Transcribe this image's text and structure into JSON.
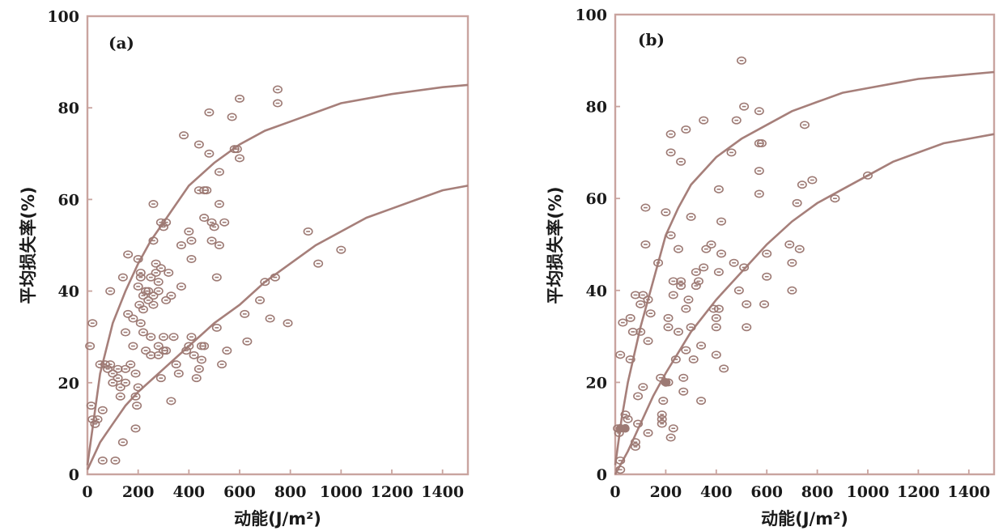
{
  "chart_data": [
    {
      "type": "scatter",
      "panel_label": "(a)",
      "xlabel": "动能(J/m²)",
      "ylabel": "平均损失率(%)",
      "xlim": [
        0,
        1500
      ],
      "ylim": [
        0,
        100
      ],
      "xticks": [
        "0",
        "200",
        "400",
        "600",
        "800",
        "1000",
        "1200",
        "1400"
      ],
      "yticks": [
        "0",
        "20",
        "40",
        "60",
        "80",
        "100"
      ],
      "curves": [
        {
          "name": "upper",
          "points": [
            [
              0,
              2
            ],
            [
              50,
              22
            ],
            [
              100,
              33
            ],
            [
              150,
              40
            ],
            [
              200,
              46
            ],
            [
              250,
              51
            ],
            [
              300,
              55
            ],
            [
              400,
              63
            ],
            [
              500,
              68
            ],
            [
              600,
              72
            ],
            [
              700,
              75
            ],
            [
              800,
              77
            ],
            [
              900,
              79
            ],
            [
              1000,
              81
            ],
            [
              1200,
              83
            ],
            [
              1400,
              84.5
            ],
            [
              1500,
              85
            ]
          ]
        },
        {
          "name": "lower",
          "points": [
            [
              0,
              1
            ],
            [
              50,
              7
            ],
            [
              100,
              11
            ],
            [
              150,
              15
            ],
            [
              200,
              18
            ],
            [
              300,
              23
            ],
            [
              400,
              28
            ],
            [
              500,
              33
            ],
            [
              600,
              37
            ],
            [
              700,
              42
            ],
            [
              800,
              46
            ],
            [
              900,
              50
            ],
            [
              1000,
              53
            ],
            [
              1100,
              56
            ],
            [
              1200,
              58
            ],
            [
              1300,
              60
            ],
            [
              1400,
              62
            ],
            [
              1500,
              63
            ]
          ]
        }
      ],
      "points": [
        [
          10,
          28
        ],
        [
          15,
          15
        ],
        [
          20,
          12
        ],
        [
          20,
          33
        ],
        [
          30,
          11
        ],
        [
          40,
          12
        ],
        [
          50,
          24
        ],
        [
          60,
          14
        ],
        [
          60,
          3
        ],
        [
          70,
          24
        ],
        [
          80,
          23
        ],
        [
          90,
          24
        ],
        [
          90,
          40
        ],
        [
          100,
          22
        ],
        [
          100,
          20
        ],
        [
          110,
          3
        ],
        [
          120,
          21
        ],
        [
          120,
          23
        ],
        [
          130,
          17
        ],
        [
          130,
          19
        ],
        [
          140,
          43
        ],
        [
          140,
          7
        ],
        [
          150,
          23
        ],
        [
          150,
          20
        ],
        [
          150,
          31
        ],
        [
          160,
          35
        ],
        [
          160,
          48
        ],
        [
          170,
          24
        ],
        [
          180,
          34
        ],
        [
          180,
          28
        ],
        [
          190,
          22
        ],
        [
          190,
          10
        ],
        [
          190,
          17
        ],
        [
          195,
          15
        ],
        [
          200,
          19
        ],
        [
          200,
          41
        ],
        [
          200,
          47
        ],
        [
          205,
          37
        ],
        [
          210,
          43
        ],
        [
          210,
          44
        ],
        [
          210,
          33
        ],
        [
          220,
          39
        ],
        [
          220,
          36
        ],
        [
          220,
          31
        ],
        [
          230,
          40
        ],
        [
          230,
          27
        ],
        [
          240,
          40
        ],
        [
          240,
          38
        ],
        [
          250,
          43
        ],
        [
          250,
          30
        ],
        [
          250,
          26
        ],
        [
          260,
          39
        ],
        [
          260,
          37
        ],
        [
          260,
          59
        ],
        [
          260,
          51
        ],
        [
          270,
          46
        ],
        [
          270,
          44
        ],
        [
          280,
          40
        ],
        [
          280,
          42
        ],
        [
          280,
          28
        ],
        [
          280,
          26
        ],
        [
          290,
          55
        ],
        [
          290,
          45
        ],
        [
          290,
          21
        ],
        [
          300,
          54
        ],
        [
          300,
          27
        ],
        [
          300,
          30
        ],
        [
          310,
          55
        ],
        [
          310,
          38
        ],
        [
          310,
          27
        ],
        [
          320,
          44
        ],
        [
          330,
          39
        ],
        [
          330,
          16
        ],
        [
          340,
          30
        ],
        [
          350,
          24
        ],
        [
          360,
          22
        ],
        [
          370,
          50
        ],
        [
          370,
          41
        ],
        [
          380,
          74
        ],
        [
          390,
          27
        ],
        [
          400,
          28
        ],
        [
          400,
          53
        ],
        [
          410,
          51
        ],
        [
          410,
          47
        ],
        [
          410,
          30
        ],
        [
          420,
          26
        ],
        [
          430,
          21
        ],
        [
          440,
          72
        ],
        [
          440,
          62
        ],
        [
          440,
          23
        ],
        [
          450,
          28
        ],
        [
          450,
          25
        ],
        [
          460,
          62
        ],
        [
          460,
          56
        ],
        [
          460,
          28
        ],
        [
          470,
          62
        ],
        [
          480,
          79
        ],
        [
          480,
          70
        ],
        [
          490,
          55
        ],
        [
          490,
          51
        ],
        [
          500,
          54
        ],
        [
          510,
          32
        ],
        [
          510,
          43
        ],
        [
          520,
          66
        ],
        [
          520,
          59
        ],
        [
          520,
          50
        ],
        [
          530,
          24
        ],
        [
          540,
          55
        ],
        [
          550,
          27
        ],
        [
          570,
          78
        ],
        [
          580,
          71
        ],
        [
          590,
          71
        ],
        [
          600,
          69
        ],
        [
          600,
          82
        ],
        [
          620,
          35
        ],
        [
          630,
          29
        ],
        [
          680,
          38
        ],
        [
          700,
          42
        ],
        [
          720,
          34
        ],
        [
          740,
          43
        ],
        [
          750,
          84
        ],
        [
          750,
          81
        ],
        [
          790,
          33
        ],
        [
          870,
          53
        ],
        [
          910,
          46
        ],
        [
          1000,
          49
        ]
      ]
    },
    {
      "type": "scatter",
      "panel_label": "(b)",
      "xlabel": "动能(J/m²)",
      "ylabel": "平均损失率(%)",
      "xlim": [
        0,
        1500
      ],
      "ylim": [
        0,
        100
      ],
      "xticks": [
        "0",
        "200",
        "400",
        "600",
        "800",
        "1000",
        "1200",
        "1400"
      ],
      "yticks": [
        "0",
        "20",
        "40",
        "60",
        "80",
        "100"
      ],
      "curves": [
        {
          "name": "upper",
          "points": [
            [
              0,
              2
            ],
            [
              25,
              12
            ],
            [
              50,
              20
            ],
            [
              100,
              32
            ],
            [
              150,
              42
            ],
            [
              200,
              52
            ],
            [
              250,
              58
            ],
            [
              300,
              63
            ],
            [
              400,
              69
            ],
            [
              500,
              73
            ],
            [
              600,
              76
            ],
            [
              700,
              79
            ],
            [
              800,
              81
            ],
            [
              900,
              83
            ],
            [
              1000,
              84
            ],
            [
              1100,
              85
            ],
            [
              1200,
              86
            ],
            [
              1300,
              86.5
            ],
            [
              1400,
              87
            ],
            [
              1500,
              87.5
            ]
          ]
        },
        {
          "name": "lower",
          "points": [
            [
              0,
              0
            ],
            [
              50,
              5
            ],
            [
              100,
              11
            ],
            [
              150,
              17
            ],
            [
              200,
              22
            ],
            [
              300,
              31
            ],
            [
              400,
              38
            ],
            [
              500,
              44
            ],
            [
              600,
              50
            ],
            [
              700,
              55
            ],
            [
              800,
              59
            ],
            [
              900,
              62
            ],
            [
              1000,
              65
            ],
            [
              1100,
              68
            ],
            [
              1200,
              70
            ],
            [
              1300,
              72
            ],
            [
              1400,
              73
            ],
            [
              1500,
              74
            ]
          ]
        }
      ],
      "points": [
        [
          10,
          10
        ],
        [
          15,
          9
        ],
        [
          20,
          3
        ],
        [
          20,
          1
        ],
        [
          20,
          26
        ],
        [
          30,
          33
        ],
        [
          40,
          13
        ],
        [
          50,
          12
        ],
        [
          60,
          34
        ],
        [
          60,
          25
        ],
        [
          70,
          31
        ],
        [
          80,
          7
        ],
        [
          80,
          6
        ],
        [
          80,
          39
        ],
        [
          90,
          17
        ],
        [
          90,
          11
        ],
        [
          100,
          31
        ],
        [
          100,
          37
        ],
        [
          110,
          19
        ],
        [
          110,
          39
        ],
        [
          120,
          58
        ],
        [
          120,
          50
        ],
        [
          130,
          9
        ],
        [
          130,
          38
        ],
        [
          130,
          29
        ],
        [
          140,
          35
        ],
        [
          170,
          46
        ],
        [
          180,
          21
        ],
        [
          185,
          13
        ],
        [
          185,
          12
        ],
        [
          185,
          11
        ],
        [
          190,
          16
        ],
        [
          200,
          20
        ],
        [
          200,
          57
        ],
        [
          210,
          20
        ],
        [
          210,
          34
        ],
        [
          210,
          32
        ],
        [
          220,
          52
        ],
        [
          220,
          74
        ],
        [
          220,
          8
        ],
        [
          220,
          70
        ],
        [
          230,
          42
        ],
        [
          230,
          39
        ],
        [
          230,
          10
        ],
        [
          240,
          25
        ],
        [
          250,
          49
        ],
        [
          250,
          31
        ],
        [
          260,
          68
        ],
        [
          260,
          42
        ],
        [
          260,
          41
        ],
        [
          270,
          21
        ],
        [
          270,
          18
        ],
        [
          280,
          27
        ],
        [
          280,
          75
        ],
        [
          280,
          36
        ],
        [
          290,
          38
        ],
        [
          300,
          32
        ],
        [
          300,
          56
        ],
        [
          310,
          25
        ],
        [
          320,
          41
        ],
        [
          320,
          44
        ],
        [
          330,
          42
        ],
        [
          340,
          28
        ],
        [
          340,
          16
        ],
        [
          350,
          77
        ],
        [
          350,
          45
        ],
        [
          360,
          49
        ],
        [
          380,
          50
        ],
        [
          390,
          36
        ],
        [
          400,
          34
        ],
        [
          400,
          32
        ],
        [
          400,
          26
        ],
        [
          410,
          62
        ],
        [
          410,
          44
        ],
        [
          410,
          36
        ],
        [
          420,
          55
        ],
        [
          420,
          48
        ],
        [
          430,
          23
        ],
        [
          460,
          70
        ],
        [
          470,
          46
        ],
        [
          480,
          77
        ],
        [
          490,
          40
        ],
        [
          500,
          90
        ],
        [
          510,
          80
        ],
        [
          510,
          45
        ],
        [
          520,
          37
        ],
        [
          520,
          32
        ],
        [
          570,
          79
        ],
        [
          570,
          72
        ],
        [
          570,
          66
        ],
        [
          570,
          61
        ],
        [
          580,
          72
        ],
        [
          590,
          37
        ],
        [
          600,
          48
        ],
        [
          600,
          43
        ],
        [
          690,
          50
        ],
        [
          700,
          46
        ],
        [
          700,
          40
        ],
        [
          720,
          59
        ],
        [
          730,
          49
        ],
        [
          740,
          63
        ],
        [
          750,
          76
        ],
        [
          780,
          64
        ],
        [
          870,
          60
        ],
        [
          1000,
          65
        ]
      ],
      "filled_points": [
        [
          20,
          10
        ],
        [
          40,
          10
        ],
        [
          200,
          20
        ]
      ]
    }
  ]
}
